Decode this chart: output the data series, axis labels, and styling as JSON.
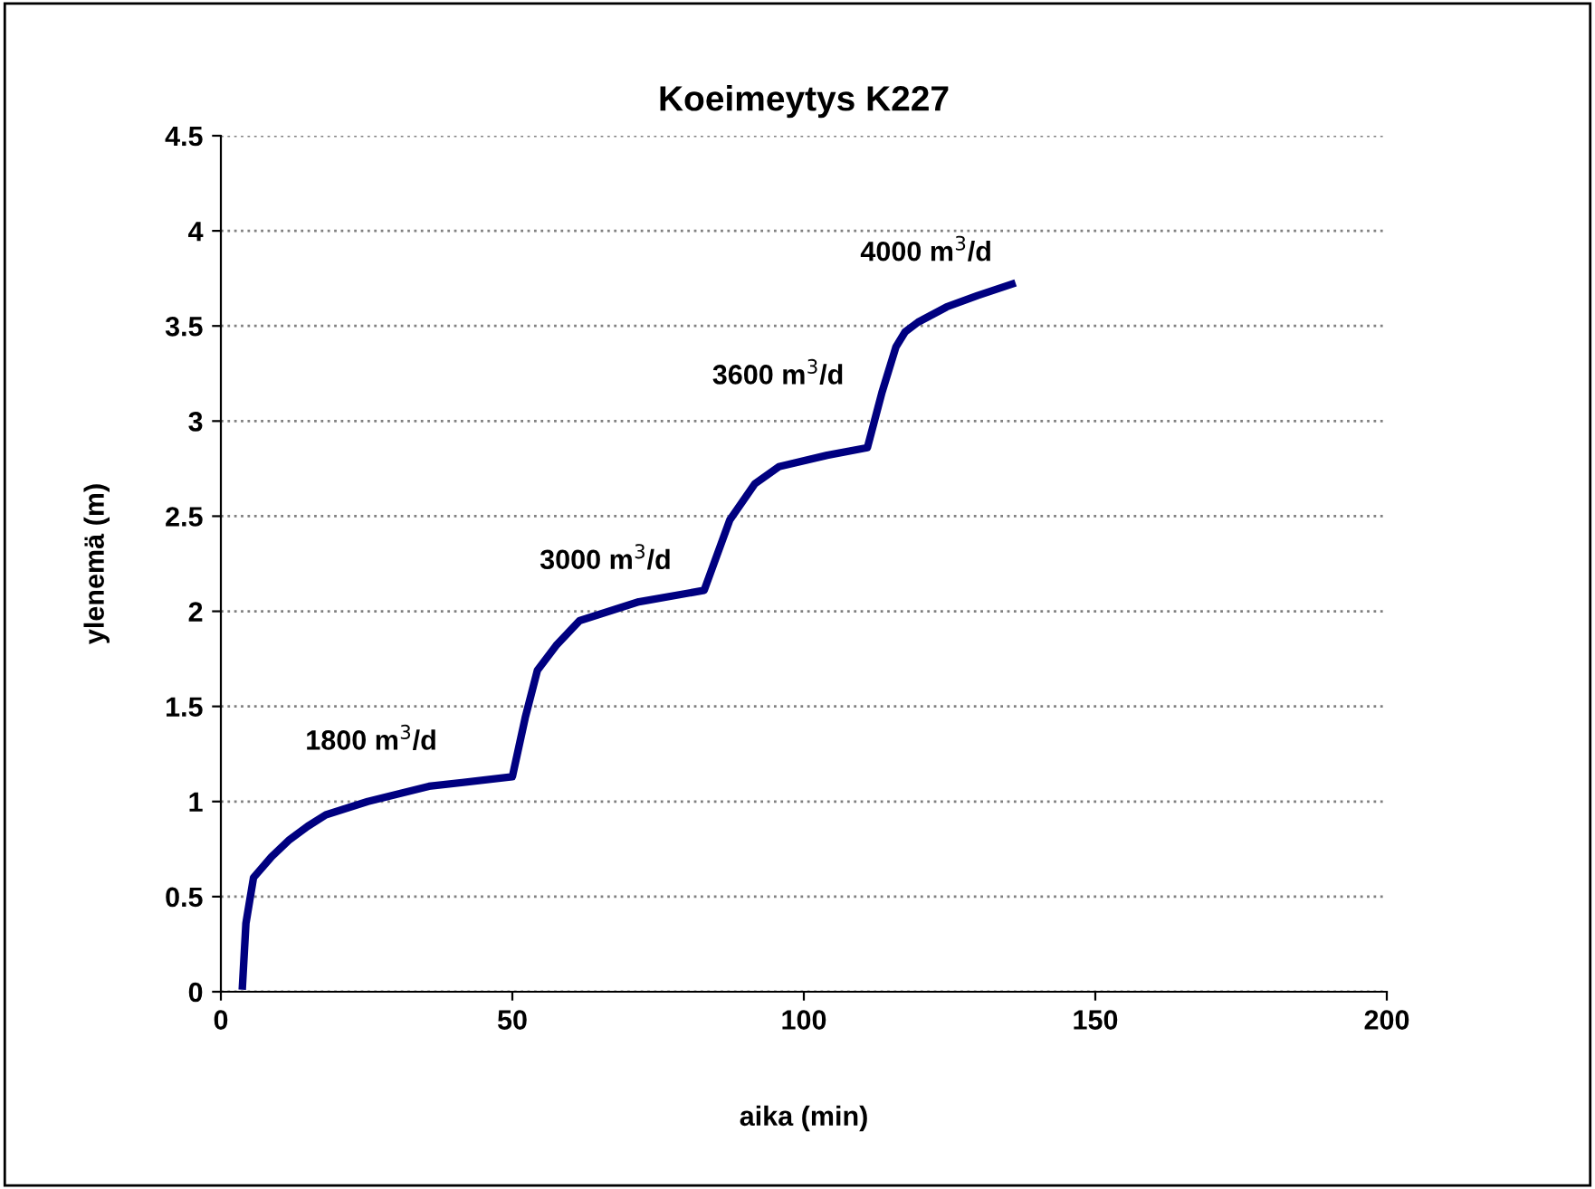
{
  "chart_data": {
    "type": "line",
    "title": "Koeimeytys K227",
    "xlabel": "aika (min)",
    "ylabel": "ylenemä (m)",
    "xlim": [
      0,
      200
    ],
    "xticks": [
      0,
      50,
      100,
      150,
      200
    ],
    "ylim": [
      0,
      4.5
    ],
    "yticks": [
      0,
      0.5,
      1,
      1.5,
      2,
      2.5,
      3,
      3.5,
      4,
      4.5
    ],
    "grid": "y",
    "marker": "none",
    "line_style": "solid",
    "series": [
      {
        "color": "#000080",
        "x": [
          3.7,
          4.3,
          5.6,
          8.7,
          11.8,
          14.9,
          18,
          25.2,
          35.7,
          50,
          52.2,
          54.3,
          57.5,
          61.5,
          71.7,
          82.9,
          87.3,
          91.6,
          95.7,
          104,
          110.9,
          113.4,
          115.8,
          117.4,
          119.6,
          124.5,
          129.8,
          135.7
        ],
        "values": [
          0.03,
          0.36,
          0.6,
          0.71,
          0.8,
          0.87,
          0.93,
          1.0,
          1.08,
          1.13,
          1.44,
          1.69,
          1.82,
          1.95,
          2.05,
          2.11,
          2.48,
          2.67,
          2.76,
          2.82,
          2.86,
          3.15,
          3.39,
          3.47,
          3.52,
          3.6,
          3.66,
          3.72
        ]
      }
    ],
    "annotations": [
      "1800 m$^{3}$/d",
      "3000 m$^{3}$/d",
      "3600 m$^{3}$/d",
      "4000 m$^{3}$/d"
    ]
  }
}
